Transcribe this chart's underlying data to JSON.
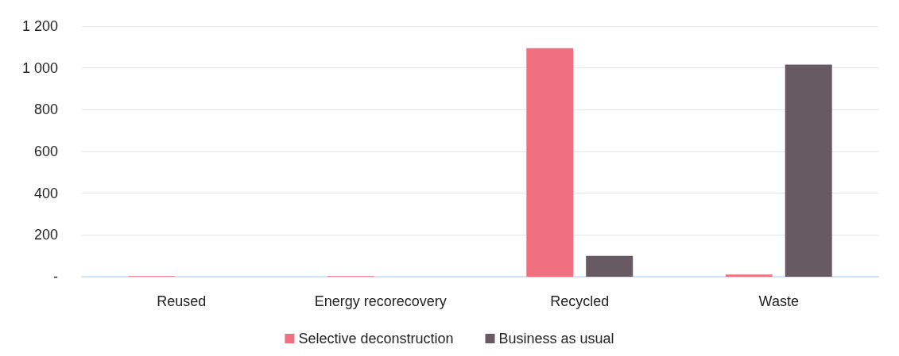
{
  "chart_data": {
    "type": "bar",
    "categories": [
      "Reused",
      "Energy recorecovery",
      "Recycled",
      "Waste"
    ],
    "series": [
      {
        "name": "Selective deconstruction",
        "color": "#f07080",
        "values": [
          3,
          3,
          1095,
          10
        ]
      },
      {
        "name": "Business as usual",
        "color": "#675a62",
        "values": [
          0,
          0,
          100,
          1016
        ]
      }
    ],
    "ylim": [
      0,
      1200
    ],
    "yticks": [
      {
        "value": 0,
        "label": "-"
      },
      200,
      400,
      600,
      800,
      {
        "value": 1000,
        "label": "1 000"
      },
      {
        "value": 1200,
        "label": "1 200"
      }
    ],
    "grid": "y",
    "legend": "bottom"
  }
}
